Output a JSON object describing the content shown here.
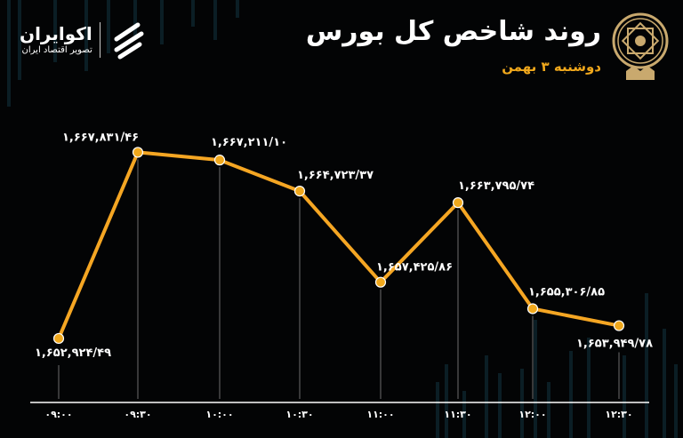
{
  "header": {
    "title": "روند شاخص کل بورس",
    "subtitle": "دوشنبه ۳ بهمن",
    "seal_icon": "stock-exchange-seal-icon",
    "brand": {
      "name": "اکوایران",
      "tagline": "تصویر اقتصاد ایران",
      "logo_icon": "ecoiran-logo-icon"
    }
  },
  "colors": {
    "line": "#f5a623",
    "marker": "#f0a81c",
    "background": "#030405",
    "bars": "#0f2a33",
    "subtitle": "#f0a81c"
  },
  "chart_data": {
    "type": "line",
    "title": "روند شاخص کل بورس",
    "categories": [
      "۰۹:۰۰",
      "۰۹:۳۰",
      "۱۰:۰۰",
      "۱۰:۳۰",
      "۱۱:۰۰",
      "۱۱:۳۰",
      "۱۲:۰۰",
      "۱۲:۳۰"
    ],
    "values": [
      1652924.49,
      1667831.46,
      1667211.1,
      1664723.37,
      1657425.86,
      1663795.74,
      1655306.85,
      1653949.78
    ],
    "data_labels": [
      "۱,۶۵۲,۹۲۴/۴۹",
      "۱,۶۶۷,۸۳۱/۴۶",
      "۱,۶۶۷,۲۱۱/۱۰",
      "۱,۶۶۴,۷۲۳/۳۷",
      "۱,۶۵۷,۴۲۵/۸۶",
      "۱,۶۶۳,۷۹۵/۷۴",
      "۱,۶۵۵,۳۰۶/۸۵",
      "۱,۶۵۳,۹۴۹/۷۸"
    ],
    "xlabel": "",
    "ylabel": "",
    "ylim": [
      1651000,
      1669000
    ],
    "grid": false,
    "legend": "none"
  }
}
